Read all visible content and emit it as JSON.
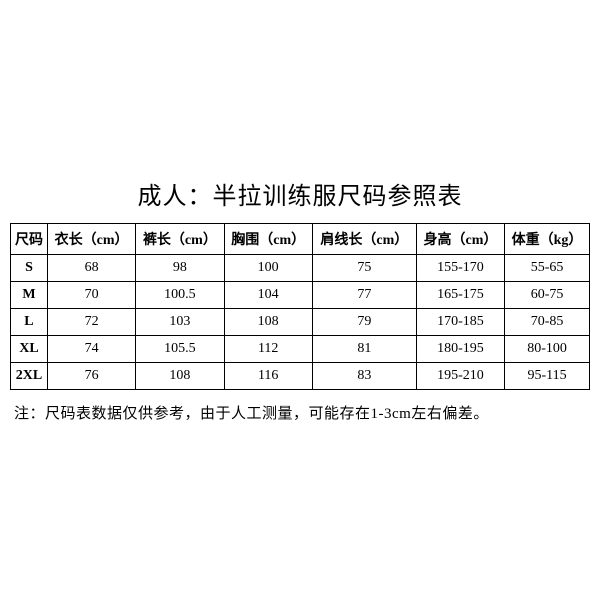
{
  "title": "成人：半拉训练服尺码参照表",
  "table": {
    "columns": [
      "尺码",
      "衣长（cm）",
      "裤长（cm）",
      "胸围（cm）",
      "肩线长（cm）",
      "身高（cm）",
      "体重（kg）"
    ],
    "rows": [
      [
        "S",
        "68",
        "98",
        "100",
        "75",
        "155-170",
        "55-65"
      ],
      [
        "M",
        "70",
        "100.5",
        "104",
        "77",
        "165-175",
        "60-75"
      ],
      [
        "L",
        "72",
        "103",
        "108",
        "79",
        "170-185",
        "70-85"
      ],
      [
        "XL",
        "74",
        "105.5",
        "112",
        "81",
        "180-195",
        "80-100"
      ],
      [
        "2XL",
        "76",
        "108",
        "116",
        "83",
        "195-210",
        "95-115"
      ]
    ]
  },
  "note": "注：尺码表数据仅供参考，由于人工测量，可能存在1-3cm左右偏差。",
  "styling": {
    "background_color": "#ffffff",
    "text_color": "#000000",
    "border_color": "#000000",
    "title_fontsize": 24,
    "header_fontsize": 14,
    "cell_fontsize": 14,
    "note_fontsize": 15,
    "font_family": "SimSun"
  }
}
